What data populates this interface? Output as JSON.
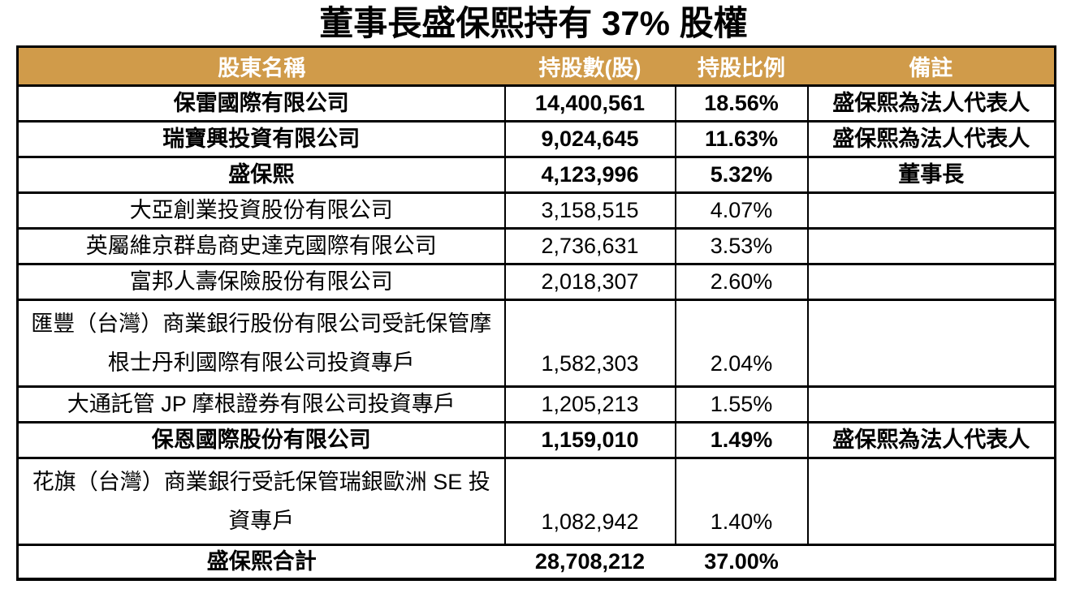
{
  "title": "董事長盛保熙持有 37% 股權",
  "colors": {
    "header_bg": "#D09B4A",
    "header_text": "#FFFFFF",
    "border_color": "#000000"
  },
  "chart_data": {
    "type": "table",
    "title": "董事長盛保熙持有 37% 股權",
    "columns": [
      "股東名稱",
      "持股數(股)",
      "持股比例",
      "備註"
    ],
    "rows": [
      {
        "name": "保雷國際有限公司",
        "shares": "14,400,561",
        "ratio": "18.56%",
        "note": "盛保熙為法人代表人"
      },
      {
        "name": "瑞寶興投資有限公司",
        "shares": "9,024,645",
        "ratio": "11.63%",
        "note": "盛保熙為法人代表人"
      },
      {
        "name": "盛保熙",
        "shares": "4,123,996",
        "ratio": "5.32%",
        "note": "董事長"
      },
      {
        "name": "大亞創業投資股份有限公司",
        "shares": "3,158,515",
        "ratio": "4.07%",
        "note": ""
      },
      {
        "name": "英屬維京群島商史達克國際有限公司",
        "shares": "2,736,631",
        "ratio": "3.53%",
        "note": ""
      },
      {
        "name": "富邦人壽保險股份有限公司",
        "shares": "2,018,307",
        "ratio": "2.60%",
        "note": ""
      },
      {
        "name": "匯豐（台灣）商業銀行股份有限公司受託保管摩\n根士丹利國際有限公司投資專戶",
        "shares": "1,582,303",
        "ratio": "2.04%",
        "note": ""
      },
      {
        "name": "大通託管 JP 摩根證券有限公司投資專戶",
        "shares": "1,205,213",
        "ratio": "1.55%",
        "note": ""
      },
      {
        "name": "保恩國際股份有限公司",
        "shares": "1,159,010",
        "ratio": "1.49%",
        "note": "盛保熙為法人代表人"
      },
      {
        "name": "花旗（台灣）商業銀行受託保管瑞銀歐洲 SE 投\n資專戶",
        "shares": "1,082,942",
        "ratio": "1.40%",
        "note": ""
      }
    ],
    "total": {
      "name": "盛保熙合計",
      "shares": "28,708,212",
      "ratio": "37.00%",
      "note": ""
    }
  }
}
